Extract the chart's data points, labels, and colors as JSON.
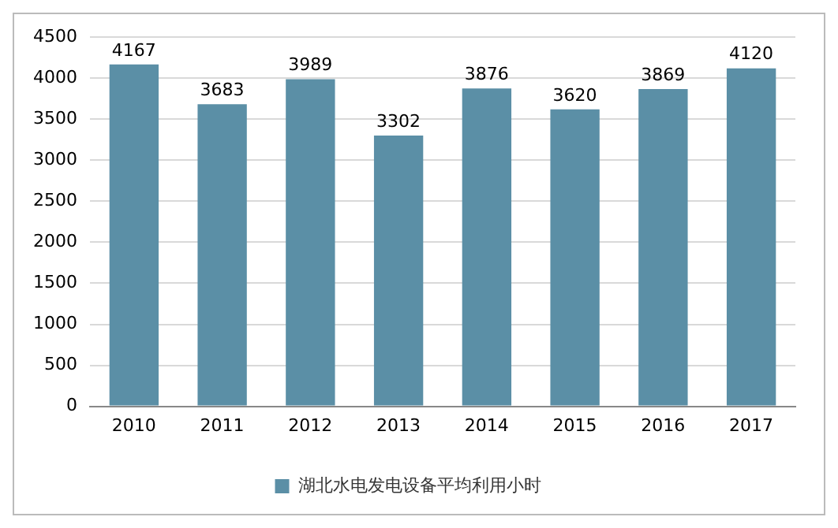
{
  "chart_data": {
    "type": "bar",
    "categories": [
      "2010",
      "2011",
      "2012",
      "2013",
      "2014",
      "2015",
      "2016",
      "2017"
    ],
    "series": [
      {
        "name": "湖北水电发电设备平均利用小时",
        "color": "#5b8fa6",
        "values": [
          4167,
          3683,
          3989,
          3302,
          3876,
          3620,
          3869,
          4120
        ]
      }
    ],
    "ylim": [
      0,
      4500
    ],
    "yticks": [
      0,
      500,
      1000,
      1500,
      2000,
      2500,
      3000,
      3500,
      4000,
      4500
    ],
    "grid": "y",
    "legend": "bottom",
    "data_labels": true
  }
}
